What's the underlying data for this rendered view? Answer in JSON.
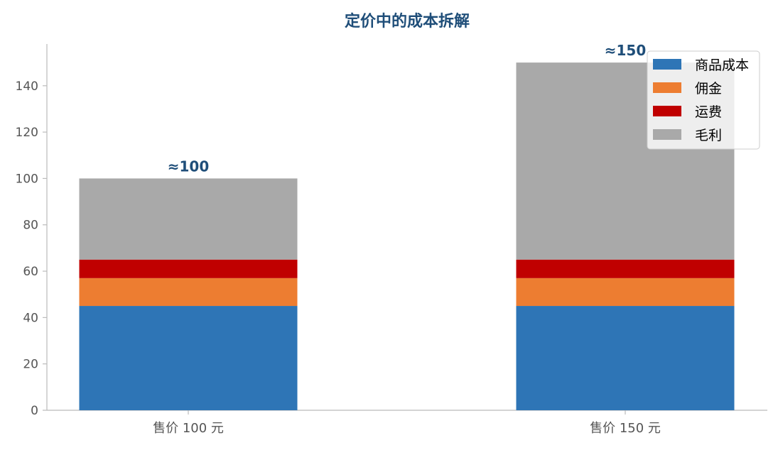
{
  "chart_data": {
    "type": "bar",
    "stacked": true,
    "title": "定价中的成本拆解",
    "categories": [
      "售价 100 元",
      "售价 150 元"
    ],
    "series": [
      {
        "name": "商品成本",
        "color": "#2e75b6",
        "values": [
          45,
          45
        ]
      },
      {
        "name": "佣金",
        "color": "#ed7d31",
        "values": [
          12,
          12
        ]
      },
      {
        "name": "运费",
        "color": "#c00000",
        "values": [
          8,
          8
        ]
      },
      {
        "name": "毛利",
        "color": "#a9a9a9",
        "values": [
          35,
          85
        ]
      }
    ],
    "totals_labels": [
      "≈100",
      "≈150"
    ],
    "ylim": [
      0,
      158
    ],
    "yticks": [
      0,
      20,
      40,
      60,
      80,
      100,
      120,
      140
    ],
    "grid": false,
    "legend_position": "top-right"
  }
}
